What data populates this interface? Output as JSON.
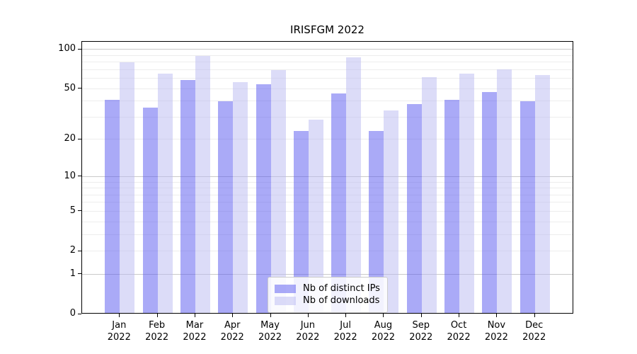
{
  "figure": {
    "background": "#ffffff"
  },
  "chart_data": {
    "type": "bar",
    "title": "IRISFGM 2022",
    "categories": [
      "Jan 2022",
      "Feb 2022",
      "Mar 2022",
      "Apr 2022",
      "May 2022",
      "Jun 2022",
      "Jul 2022",
      "Aug 2022",
      "Sep 2022",
      "Oct 2022",
      "Nov 2022",
      "Dec 2022"
    ],
    "series": [
      {
        "name": "Nb of distinct IPs",
        "color": "#5555ef",
        "opacity": 0.5,
        "values": [
          40,
          35,
          57,
          39,
          53,
          23,
          45,
          23,
          37,
          40,
          46,
          39
        ]
      },
      {
        "name": "Nb of downloads",
        "color": "#b9b9f1",
        "opacity": 0.5,
        "values": [
          78,
          64,
          88,
          55,
          68,
          28,
          85,
          33,
          60,
          64,
          69,
          62
        ]
      }
    ],
    "yscale": "log10(1+y)",
    "ylim": [
      0,
      115
    ],
    "ytick_values": [
      0,
      1,
      2,
      5,
      10,
      20,
      50,
      100
    ],
    "ytick_labels": [
      "0",
      "1",
      "2",
      "5",
      "10",
      "20",
      "50",
      "100"
    ],
    "grid": {
      "orientation": "horizontal",
      "major_values": [
        1,
        10,
        100
      ],
      "minor_values": [
        2,
        3,
        4,
        5,
        6,
        7,
        8,
        9,
        20,
        30,
        40,
        50,
        60,
        70,
        80,
        90
      ],
      "major_color": "#c9c9c9",
      "minor_color": "#ededed"
    },
    "legend_position": "lower center",
    "xlabel": "",
    "ylabel": ""
  }
}
